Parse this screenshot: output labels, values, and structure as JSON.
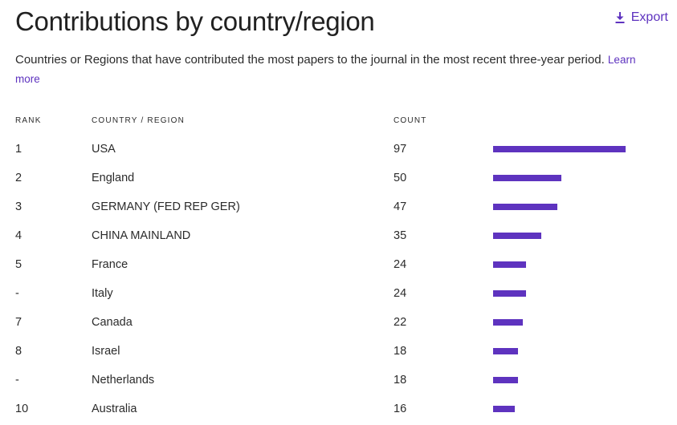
{
  "header": {
    "title": "Contributions by country/region",
    "export_label": "Export",
    "export_icon": "download-icon"
  },
  "description": {
    "text": "Countries or Regions that have contributed the most papers to the journal in the most recent three-year period.",
    "link_text": "Learn more"
  },
  "table": {
    "headers": {
      "rank": "RANK",
      "country": "COUNTRY / REGION",
      "count": "COUNT"
    },
    "max_count": 97,
    "bar_color": "#5e33bf",
    "rows": [
      {
        "rank": "1",
        "country": "USA",
        "count": 97
      },
      {
        "rank": "2",
        "country": "England",
        "count": 50
      },
      {
        "rank": "3",
        "country": "GERMANY (FED REP GER)",
        "count": 47
      },
      {
        "rank": "4",
        "country": "CHINA MAINLAND",
        "count": 35
      },
      {
        "rank": "5",
        "country": "France",
        "count": 24
      },
      {
        "rank": "-",
        "country": "Italy",
        "count": 24
      },
      {
        "rank": "7",
        "country": "Canada",
        "count": 22
      },
      {
        "rank": "8",
        "country": "Israel",
        "count": 18
      },
      {
        "rank": "-",
        "country": "Netherlands",
        "count": 18
      },
      {
        "rank": "10",
        "country": "Australia",
        "count": 16
      }
    ]
  }
}
